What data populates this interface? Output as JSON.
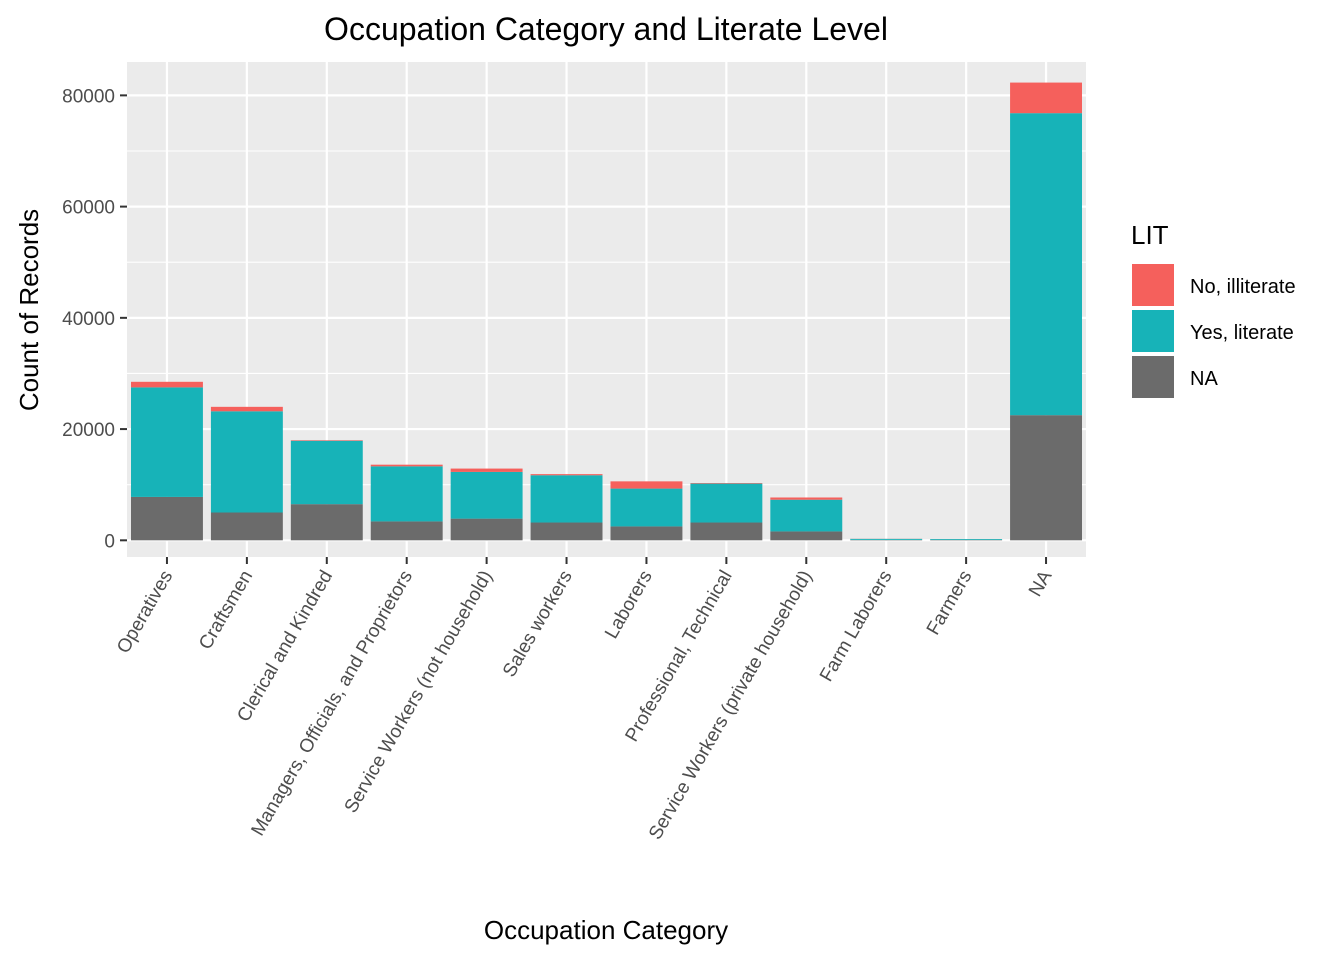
{
  "chart_data": {
    "type": "bar",
    "stacked": true,
    "title": "Occupation Category and Literate Level",
    "xlabel": "Occupation Category",
    "ylabel": "Count of Records",
    "ylim": [
      -3000,
      86000
    ],
    "yticks": [
      0,
      20000,
      40000,
      60000,
      80000
    ],
    "y_tick_labels": [
      "0",
      "20000",
      "40000",
      "60000",
      "80000"
    ],
    "grid": true,
    "legend": {
      "title": "LIT",
      "position": "right",
      "entries": [
        "No, illiterate",
        "Yes, literate",
        "NA"
      ]
    },
    "categories": [
      "Operatives",
      "Craftsmen",
      "Clerical and Kindred",
      "Managers, Officials, and Proprietors",
      "Service Workers (not household)",
      "Sales workers",
      "Laborers",
      "Professional, Technical",
      "Service Workers (private household)",
      "Farm Laborers",
      "Farmers",
      "NA"
    ],
    "series": [
      {
        "name": "NA",
        "color": "#6b6b6b",
        "values": [
          7800,
          5000,
          6500,
          3400,
          3900,
          3200,
          2500,
          3200,
          1600,
          80,
          60,
          22500
        ]
      },
      {
        "name": "Yes, literate",
        "color": "#17b3b8",
        "values": [
          19700,
          18200,
          11400,
          9900,
          8400,
          8500,
          6800,
          7000,
          5700,
          180,
          160,
          54300
        ]
      },
      {
        "name": "No, illiterate",
        "color": "#f5605c",
        "values": [
          1000,
          800,
          100,
          300,
          600,
          200,
          1300,
          100,
          400,
          20,
          10,
          5500
        ]
      }
    ]
  }
}
